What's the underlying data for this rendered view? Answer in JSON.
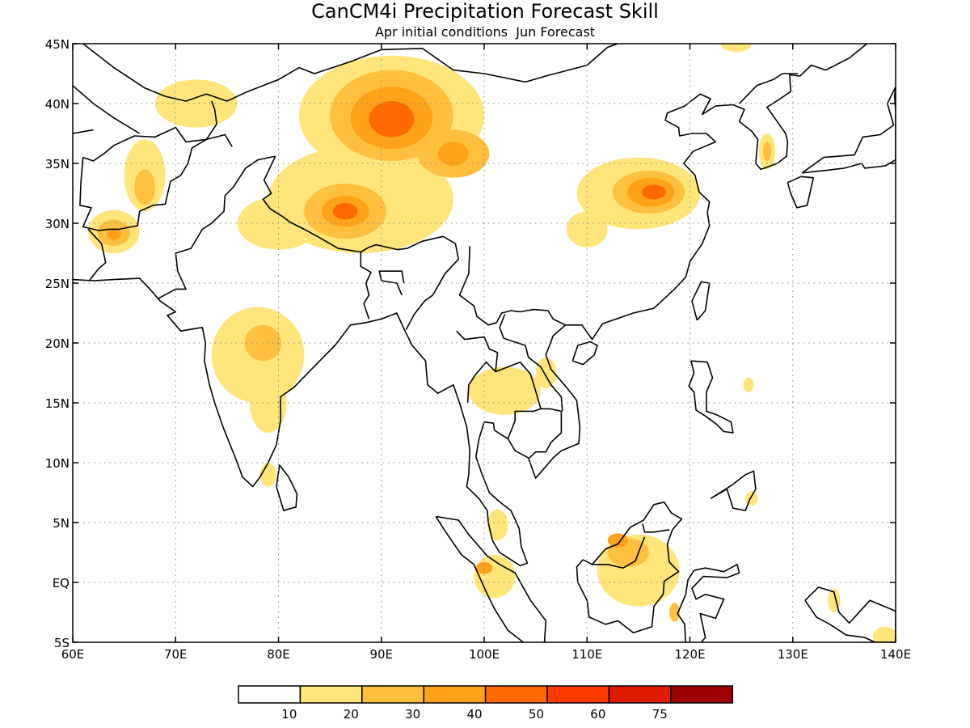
{
  "title": "CanCM4i Precipitation Forecast Skill",
  "subtitle": "Apr initial conditions  Jun Forecast",
  "lat_labels": [
    "45N",
    "40N",
    "35N",
    "30N",
    "25N",
    "20N",
    "15N",
    "10N",
    "5N",
    "EQ",
    "5S"
  ],
  "lon_labels": [
    "60E",
    "70E",
    "80E",
    "90E",
    "100E",
    "110E",
    "120E",
    "130E",
    "140E"
  ],
  "lat_values": [
    45,
    40,
    35,
    30,
    25,
    20,
    15,
    10,
    5,
    0,
    -5
  ],
  "lon_values": [
    60,
    70,
    80,
    90,
    100,
    110,
    120,
    130,
    140
  ],
  "colorbar": {
    "ticks": [
      "10",
      "20",
      "30",
      "40",
      "50",
      "60",
      "75"
    ],
    "colors": [
      "#ffffff",
      "#ffe57a",
      "#ffc03f",
      "#ffa21a",
      "#ff6a00",
      "#ff3a00",
      "#e01c00",
      "#a00000"
    ]
  },
  "blobs": [
    {
      "lon": 91,
      "lat": 39,
      "rx": 9,
      "ry": 5,
      "level": 1
    },
    {
      "lon": 91,
      "lat": 39,
      "rx": 6,
      "ry": 3.8,
      "level": 2
    },
    {
      "lon": 91,
      "lat": 38.8,
      "rx": 4,
      "ry": 2.6,
      "level": 3
    },
    {
      "lon": 91,
      "lat": 38.7,
      "rx": 2.2,
      "ry": 1.5,
      "level": 4
    },
    {
      "lon": 97,
      "lat": 35.8,
      "rx": 3.5,
      "ry": 2,
      "level": 2
    },
    {
      "lon": 97,
      "lat": 35.8,
      "rx": 1.5,
      "ry": 1,
      "level": 3
    },
    {
      "lon": 88,
      "lat": 32,
      "rx": 9,
      "ry": 4.5,
      "level": 1
    },
    {
      "lon": 86.5,
      "lat": 31,
      "rx": 4,
      "ry": 2.3,
      "level": 2
    },
    {
      "lon": 86.5,
      "lat": 31,
      "rx": 2.3,
      "ry": 1.3,
      "level": 3
    },
    {
      "lon": 86.5,
      "lat": 31,
      "rx": 1.2,
      "ry": 0.7,
      "level": 4
    },
    {
      "lon": 80,
      "lat": 30,
      "rx": 4,
      "ry": 2.2,
      "level": 1
    },
    {
      "lon": 115,
      "lat": 32.5,
      "rx": 6,
      "ry": 3,
      "level": 1
    },
    {
      "lon": 116,
      "lat": 32.6,
      "rx": 3.5,
      "ry": 1.8,
      "level": 2
    },
    {
      "lon": 116.2,
      "lat": 32.6,
      "rx": 2.3,
      "ry": 1.2,
      "level": 3
    },
    {
      "lon": 116.5,
      "lat": 32.6,
      "rx": 1.2,
      "ry": 0.6,
      "level": 4
    },
    {
      "lon": 110,
      "lat": 29.5,
      "rx": 2,
      "ry": 1.5,
      "level": 1
    },
    {
      "lon": 64,
      "lat": 29.3,
      "rx": 2.5,
      "ry": 1.8,
      "level": 1
    },
    {
      "lon": 64,
      "lat": 29.2,
      "rx": 1.6,
      "ry": 1.1,
      "level": 2
    },
    {
      "lon": 64,
      "lat": 29.1,
      "rx": 0.7,
      "ry": 0.5,
      "level": 3
    },
    {
      "lon": 67,
      "lat": 34,
      "rx": 2,
      "ry": 3,
      "level": 1
    },
    {
      "lon": 67,
      "lat": 33,
      "rx": 1,
      "ry": 1.5,
      "level": 2
    },
    {
      "lon": 72,
      "lat": 40,
      "rx": 4,
      "ry": 2,
      "level": 1
    },
    {
      "lon": 78,
      "lat": 19,
      "rx": 4.5,
      "ry": 4,
      "level": 1
    },
    {
      "lon": 78.5,
      "lat": 20,
      "rx": 1.8,
      "ry": 1.5,
      "level": 2
    },
    {
      "lon": 79,
      "lat": 15,
      "rx": 1.8,
      "ry": 2.5,
      "level": 1
    },
    {
      "lon": 79,
      "lat": 9,
      "rx": 0.8,
      "ry": 1,
      "level": 1
    },
    {
      "lon": 102,
      "lat": 16,
      "rx": 3.5,
      "ry": 2,
      "level": 1
    },
    {
      "lon": 106,
      "lat": 17.5,
      "rx": 1,
      "ry": 1.3,
      "level": 1
    },
    {
      "lon": 115,
      "lat": 1,
      "rx": 4,
      "ry": 3,
      "level": 1
    },
    {
      "lon": 114,
      "lat": 2.5,
      "rx": 2,
      "ry": 1.2,
      "level": 2
    },
    {
      "lon": 113,
      "lat": 3.5,
      "rx": 1,
      "ry": 0.6,
      "level": 3
    },
    {
      "lon": 101,
      "lat": 0.5,
      "rx": 2,
      "ry": 1.8,
      "level": 1
    },
    {
      "lon": 100,
      "lat": 1.2,
      "rx": 0.8,
      "ry": 0.5,
      "level": 3
    },
    {
      "lon": 101.3,
      "lat": 4.8,
      "rx": 1,
      "ry": 1.3,
      "level": 1
    },
    {
      "lon": 127.5,
      "lat": 36,
      "rx": 0.8,
      "ry": 1.5,
      "level": 1
    },
    {
      "lon": 127.5,
      "lat": 36,
      "rx": 0.4,
      "ry": 0.8,
      "level": 2
    },
    {
      "lon": 124.5,
      "lat": 45,
      "rx": 1.5,
      "ry": 0.7,
      "level": 1
    },
    {
      "lon": 134,
      "lat": -1.5,
      "rx": 0.6,
      "ry": 1,
      "level": 1
    },
    {
      "lon": 139,
      "lat": -4.5,
      "rx": 1.2,
      "ry": 0.8,
      "level": 1
    },
    {
      "lon": 126,
      "lat": 7,
      "rx": 0.6,
      "ry": 0.6,
      "level": 1
    },
    {
      "lon": 125.7,
      "lat": 16.5,
      "rx": 0.5,
      "ry": 0.6,
      "level": 1
    },
    {
      "lon": 118.5,
      "lat": -2.5,
      "rx": 0.5,
      "ry": 0.8,
      "level": 2
    }
  ]
}
